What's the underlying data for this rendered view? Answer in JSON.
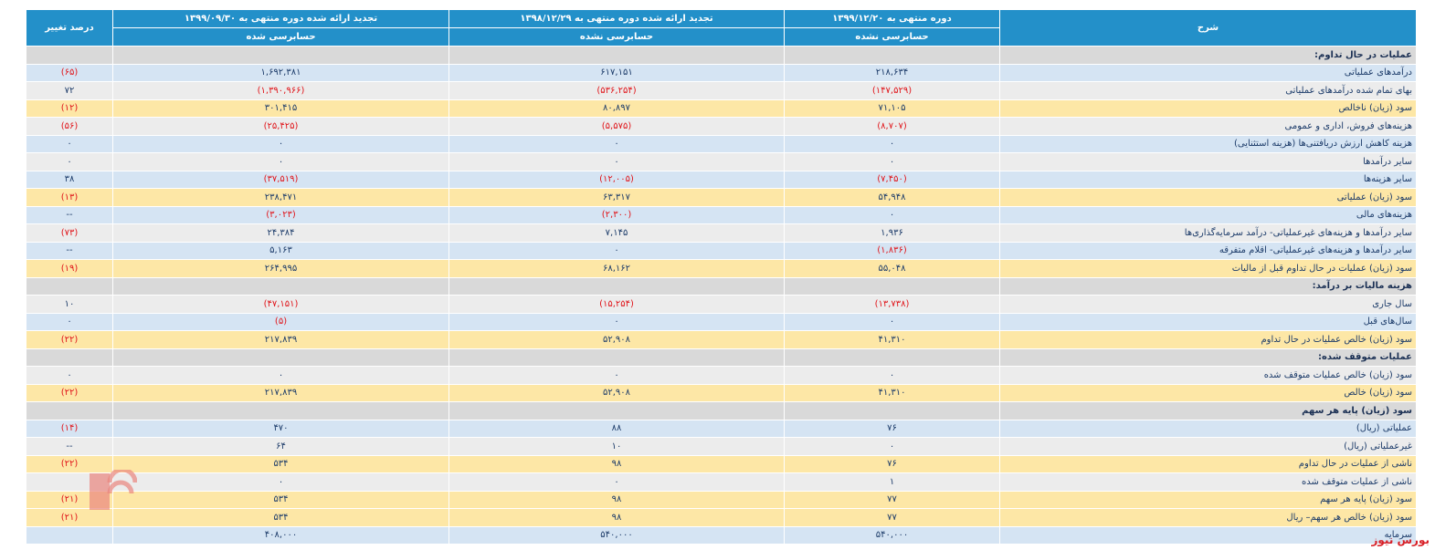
{
  "table": {
    "header": {
      "desc": "شرح",
      "periods": [
        {
          "title": "دوره منتهی به ۱۳۹۹/۱۲/۲۰",
          "status": "حسابرسی نشده"
        },
        {
          "title": "تجدید ارائه شده دوره منتهی به ۱۳۹۸/۱۲/۲۹",
          "status": "حسابرسی نشده"
        },
        {
          "title": "تجدید ارائه شده دوره منتهی به ۱۳۹۹/۰۹/۳۰",
          "status": "حسابرسی شده"
        }
      ],
      "change": "درصد تغییر"
    },
    "rows": [
      {
        "section": "عملیات در حال تداوم:"
      },
      {
        "cells": [
          "درآمدهای عملیاتی",
          "۲۱۸,۶۳۴",
          "۶۱۷,۱۵۱",
          "۱,۶۹۲,۳۸۱",
          "(۶۵)"
        ]
      },
      {
        "cells": [
          "بهای تمام شده درآمدهای عملیاتی",
          "(۱۴۷,۵۲۹)",
          "(۵۳۶,۲۵۴)",
          "(۱,۳۹۰,۹۶۶)",
          "۷۲"
        ]
      },
      {
        "cells": [
          "سود (زیان) ناخالص",
          "۷۱,۱۰۵",
          "۸۰,۸۹۷",
          "۳۰۱,۴۱۵",
          "(۱۲)"
        ],
        "highlight": true
      },
      {
        "cells": [
          "هزینه‌های فروش، اداری و عمومی",
          "(۸,۷۰۷)",
          "(۵,۵۷۵)",
          "(۲۵,۴۲۵)",
          "(۵۶)"
        ]
      },
      {
        "cells": [
          "هزینه کاهش ارزش دریافتنی‌ها (هزینه استثنایی)",
          "۰",
          "۰",
          "۰",
          "۰"
        ]
      },
      {
        "cells": [
          "سایر درآمدها",
          "۰",
          "۰",
          "۰",
          "۰"
        ]
      },
      {
        "cells": [
          "سایر هزینه‌ها",
          "(۷,۴۵۰)",
          "(۱۲,۰۰۵)",
          "(۳۷,۵۱۹)",
          "۳۸"
        ]
      },
      {
        "cells": [
          "سود (زیان) عملیاتی",
          "۵۴,۹۴۸",
          "۶۳,۳۱۷",
          "۲۳۸,۴۷۱",
          "(۱۳)"
        ],
        "highlight": true
      },
      {
        "cells": [
          "هزینه‌های مالی",
          "۰",
          "(۲,۳۰۰)",
          "(۳,۰۲۳)",
          "--"
        ]
      },
      {
        "cells": [
          "سایر درآمدها و هزینه‌های غیرعملیاتی- درآمد سرمایه‌گذاری‌ها",
          "۱,۹۳۶",
          "۷,۱۴۵",
          "۲۴,۳۸۴",
          "(۷۳)"
        ]
      },
      {
        "cells": [
          "سایر درآمدها و هزینه‌های غیرعملیاتی- اقلام متفرقه",
          "(۱,۸۳۶)",
          "۰",
          "۵,۱۶۳",
          "--"
        ]
      },
      {
        "cells": [
          "سود (زیان) عملیات در حال تداوم قبل از مالیات",
          "۵۵,۰۴۸",
          "۶۸,۱۶۲",
          "۲۶۴,۹۹۵",
          "(۱۹)"
        ],
        "highlight": true
      },
      {
        "section": "هزینه مالیات بر درآمد:"
      },
      {
        "cells": [
          "سال جاری",
          "(۱۳,۷۳۸)",
          "(۱۵,۲۵۴)",
          "(۴۷,۱۵۱)",
          "۱۰"
        ]
      },
      {
        "cells": [
          "سال‌های قبل",
          "۰",
          "۰",
          "(۵)",
          "۰"
        ]
      },
      {
        "cells": [
          "سود (زیان) خالص عملیات در حال تداوم",
          "۴۱,۳۱۰",
          "۵۲,۹۰۸",
          "۲۱۷,۸۳۹",
          "(۲۲)"
        ],
        "highlight": true
      },
      {
        "section": "عملیات متوقف شده:"
      },
      {
        "cells": [
          "سود (زیان) خالص عملیات متوقف شده",
          "۰",
          "۰",
          "۰",
          "۰"
        ]
      },
      {
        "cells": [
          "سود (زیان) خالص",
          "۴۱,۳۱۰",
          "۵۲,۹۰۸",
          "۲۱۷,۸۳۹",
          "(۲۲)"
        ],
        "highlight": true
      },
      {
        "section": "سود (زیان) پایه هر سهم"
      },
      {
        "cells": [
          "عملیاتی (ریال)",
          "۷۶",
          "۸۸",
          "۴۷۰",
          "(۱۴)"
        ]
      },
      {
        "cells": [
          "غیرعملیاتی (ریال)",
          "۰",
          "۱۰",
          "۶۴",
          "--"
        ]
      },
      {
        "cells": [
          "ناشی از عملیات در حال تداوم",
          "۷۶",
          "۹۸",
          "۵۳۴",
          "(۲۲)"
        ],
        "highlight": true
      },
      {
        "cells": [
          "ناشی از عملیات متوقف شده",
          "۱",
          "۰",
          "۰"
        ]
      },
      {
        "cells": [
          "سود (زیان) پایه هر سهم",
          "۷۷",
          "۹۸",
          "۵۳۴",
          "(۲۱)"
        ],
        "highlight": true
      },
      {
        "cells": [
          "سود (زیان) خالص هر سهم– ریال",
          "۷۷",
          "۹۸",
          "۵۳۴",
          "(۲۱)"
        ],
        "highlight": true
      },
      {
        "cells": [
          "سرمایه",
          "۵۴۰,۰۰۰",
          "۵۴۰,۰۰۰",
          "۴۰۸,۰۰۰"
        ]
      }
    ]
  },
  "watermark": "بورس نیوز"
}
